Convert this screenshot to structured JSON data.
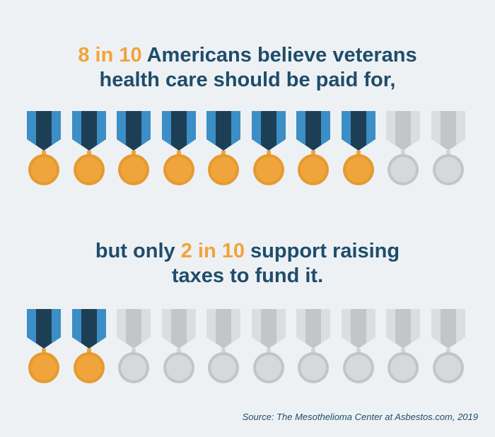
{
  "headline_1": {
    "highlight": "8 in 10",
    "text_line1_rest": " Americans believe veterans",
    "text_line2": "health care should be paid for,"
  },
  "headline_2": {
    "prefix": "but only ",
    "highlight": "2 in 10",
    "text_line1_rest": " support raising",
    "text_line2": "taxes to fund it."
  },
  "source": "Source: The Mesothelioma Center at Asbestos.com, 2019",
  "pictograph": {
    "row_1": {
      "total": 10,
      "filled": 8
    },
    "row_2": {
      "total": 10,
      "filled": 2
    }
  },
  "colors": {
    "background": "#eef1f4",
    "headline": "#1e4d6b",
    "highlight": "#f2a33a",
    "ribbon_light": "#3b8fc6",
    "ribbon_dark": "#1d3f55",
    "medal_gold": "#f2a33a",
    "inactive": "#cfd0d2"
  }
}
